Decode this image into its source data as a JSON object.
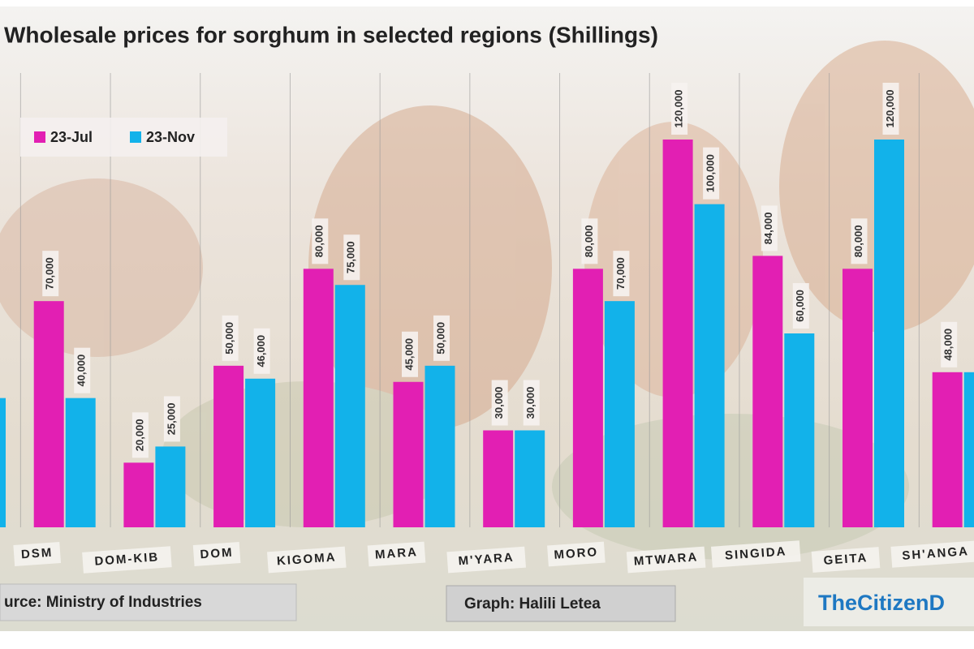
{
  "chart_data": {
    "type": "bar",
    "title": "Wholesale prices for sorghum in selected regions (Shillings)",
    "categories": [
      null,
      "DSM",
      "DOM-KIB",
      "DOM",
      "KIGOMA",
      "MARA",
      "M'YARA",
      "MORO",
      "MTWARA",
      "SINGIDA",
      "GEITA",
      "SH'ANGA"
    ],
    "series": [
      {
        "name": "23-Jul",
        "color": "#e21fb3",
        "values": [
          null,
          70000,
          20000,
          50000,
          80000,
          45000,
          30000,
          80000,
          120000,
          84000,
          80000,
          48000
        ],
        "value_labels": [
          null,
          "70,000",
          "20,000",
          "50,000",
          "80,000",
          "45,000",
          "30,000",
          "80,000",
          "120,000",
          "84,000",
          "80,000",
          "48,000"
        ]
      },
      {
        "name": "23-Nov",
        "color": "#12b2ea",
        "values": [
          40000,
          40000,
          25000,
          46000,
          75000,
          50000,
          30000,
          70000,
          100000,
          60000,
          120000,
          48000
        ],
        "value_labels": [
          null,
          "40,000",
          "25,000",
          "46,000",
          "75,000",
          "50,000",
          "30,000",
          "70,000",
          "100,000",
          "60,000",
          "120,000",
          null
        ]
      }
    ],
    "ylim": [
      0,
      120000
    ],
    "legend": "top-left",
    "source": "urce: Ministry of Industries",
    "credit": "Graph: Halili Letea",
    "brand": "TheCitizenD"
  }
}
